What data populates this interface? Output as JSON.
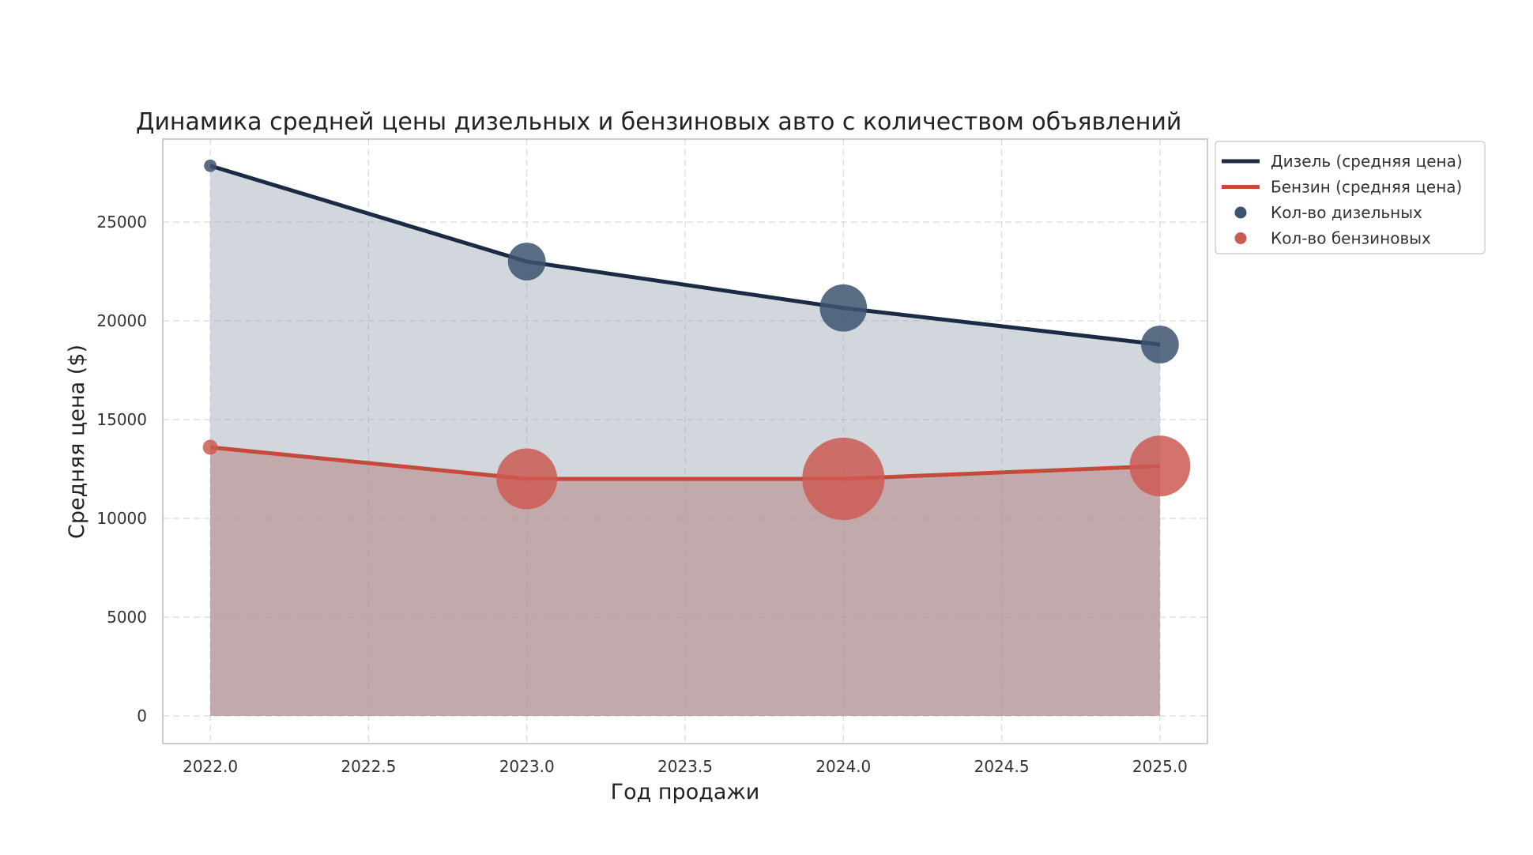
{
  "chart_data": {
    "type": "line",
    "title": "Динамика средней цены дизельных и бензиновых авто с количеством объявлений",
    "xlabel": "Год продажи",
    "ylabel": "Средняя цена ($)",
    "xlim": [
      2021.85,
      2025.15
    ],
    "ylim": [
      -1400,
      29200
    ],
    "xticks": [
      2022.0,
      2022.5,
      2023.0,
      2023.5,
      2024.0,
      2024.5,
      2025.0
    ],
    "xtick_labels": [
      "2022.0",
      "2022.5",
      "2023.0",
      "2023.5",
      "2024.0",
      "2024.5",
      "2025.0"
    ],
    "yticks": [
      0,
      5000,
      10000,
      15000,
      20000,
      25000
    ],
    "ytick_labels": [
      "0",
      "5000",
      "10000",
      "15000",
      "20000",
      "25000"
    ],
    "grid": true,
    "legend_position": "outside-top-right",
    "x": [
      2022,
      2023,
      2024,
      2025
    ],
    "series": [
      {
        "name": "Дизель (средняя цена)",
        "kind": "line",
        "color": "#1b2a45",
        "fill": "#9aa6b2",
        "values": [
          27850,
          23000,
          20650,
          18800
        ]
      },
      {
        "name": "Бензин (средняя цена)",
        "kind": "line",
        "color": "#c8483c",
        "fill": "#b58a8c",
        "values": [
          13600,
          12000,
          12000,
          12650
        ]
      },
      {
        "name": "Кол-во дизельных",
        "kind": "bubble",
        "color": "#3d5470",
        "y": [
          27850,
          23000,
          20650,
          18800
        ],
        "relative_count": [
          1,
          26,
          44,
          26
        ]
      },
      {
        "name": "Кол-во бензиновых",
        "kind": "bubble",
        "color": "#cc5b52",
        "y": [
          13600,
          12000,
          12000,
          12650
        ],
        "relative_count": [
          2,
          78,
          152,
          78
        ]
      }
    ]
  }
}
